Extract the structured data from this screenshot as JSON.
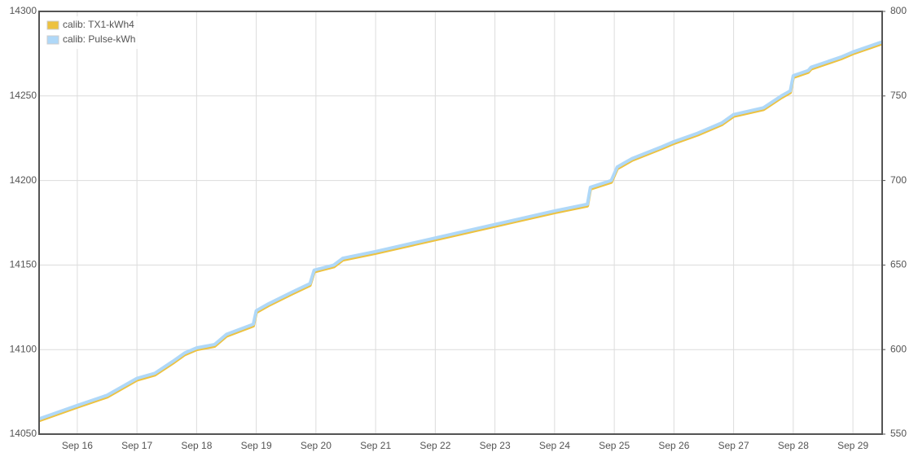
{
  "chart_data": {
    "type": "line",
    "x": [
      15.36,
      16,
      16.5,
      17,
      17.3,
      17.6,
      17.8,
      18,
      18.3,
      18.5,
      18.95,
      19.0,
      19.2,
      19.6,
      19.9,
      19.97,
      20.3,
      20.45,
      21,
      22,
      23,
      24,
      24.55,
      24.6,
      24.95,
      25.05,
      25.3,
      25.8,
      26,
      26.4,
      26.8,
      27,
      27.5,
      27.8,
      27.95,
      28.0,
      28.25,
      28.3,
      28.8,
      29,
      29.49
    ],
    "series": [
      {
        "name": "calib: TX1-kWh4",
        "color": "#edc240",
        "values": [
          14058,
          14066,
          14072,
          14082,
          14085,
          14092,
          14097,
          14100,
          14102,
          14108,
          14114,
          14122,
          14126,
          14133,
          14138,
          14146,
          14149,
          14153,
          14157,
          14165,
          14173,
          14181,
          14185,
          14195,
          14199,
          14207,
          14212,
          14219,
          14222,
          14227,
          14233,
          14238,
          14242,
          14249,
          14252,
          14261,
          14264,
          14266,
          14272,
          14275,
          14281
        ]
      },
      {
        "name": "calib: Pulse-kWh",
        "color": "#afd8f8",
        "axis": "y2",
        "values": [
          559,
          567,
          573,
          583,
          586,
          593,
          598,
          601,
          603,
          609,
          615,
          623,
          627,
          634,
          639,
          647,
          650,
          654,
          658,
          666,
          674,
          682,
          686,
          696,
          700,
          708,
          713,
          720,
          723,
          728,
          734,
          739,
          743,
          750,
          753,
          762,
          765,
          767,
          773,
          776,
          782
        ]
      }
    ],
    "xlim": [
      15.36,
      29.49
    ],
    "xticks": [
      {
        "value": 16,
        "label": "Sep 16"
      },
      {
        "value": 17,
        "label": "Sep 17"
      },
      {
        "value": 18,
        "label": "Sep 18"
      },
      {
        "value": 19,
        "label": "Sep 19"
      },
      {
        "value": 20,
        "label": "Sep 20"
      },
      {
        "value": 21,
        "label": "Sep 21"
      },
      {
        "value": 22,
        "label": "Sep 22"
      },
      {
        "value": 23,
        "label": "Sep 23"
      },
      {
        "value": 24,
        "label": "Sep 24"
      },
      {
        "value": 25,
        "label": "Sep 25"
      },
      {
        "value": 26,
        "label": "Sep 26"
      },
      {
        "value": 27,
        "label": "Sep 27"
      },
      {
        "value": 28,
        "label": "Sep 28"
      },
      {
        "value": 29,
        "label": "Sep 29"
      }
    ],
    "ylim": [
      14050,
      14300
    ],
    "yticks": [
      14050,
      14100,
      14150,
      14200,
      14250,
      14300
    ],
    "y2lim": [
      550,
      800
    ],
    "y2ticks": [
      550,
      600,
      650,
      700,
      750,
      800
    ],
    "grid": true,
    "legend": "nw"
  }
}
